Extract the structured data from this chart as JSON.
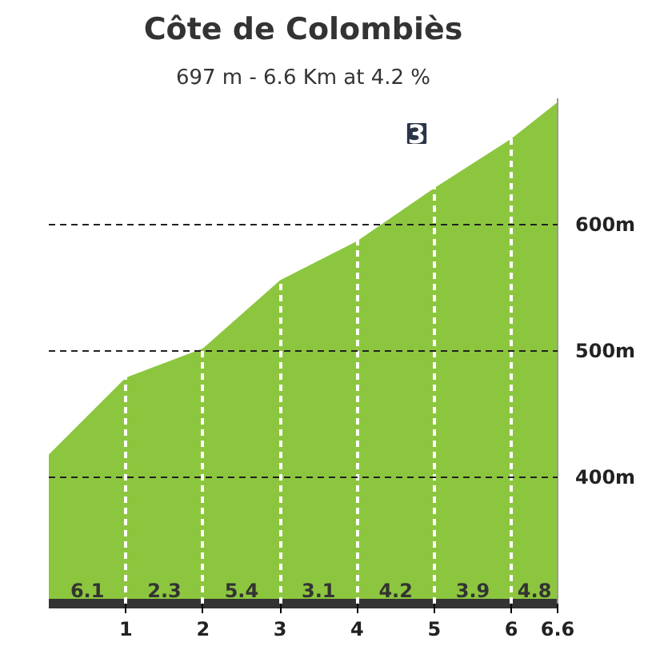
{
  "chart_data": {
    "type": "area",
    "title": "Côte de Colombiès",
    "subtitle": "697 m - 6.6 Km at 4.2 %",
    "x": [
      0,
      1,
      2,
      3,
      4,
      5,
      6,
      6.6
    ],
    "series": [
      {
        "color": "#8cc63f",
        "values": [
          418,
          479,
          502,
          556,
          587,
          629,
          668,
          697
        ]
      }
    ],
    "xlim": [
      0,
      6.6
    ],
    "xticks": [
      1,
      2,
      3,
      4,
      5,
      6,
      6.6
    ],
    "ylim": [
      300,
      700
    ],
    "yticks": [
      {
        "value": 400,
        "label": "400m"
      },
      {
        "value": 500,
        "label": "500m"
      },
      {
        "value": 600,
        "label": "600m"
      }
    ],
    "grid": true,
    "annotations": [
      {
        "text": "6.1",
        "x": 0.5,
        "y": 300
      },
      {
        "text": "2.3",
        "x": 1.5,
        "y": 300
      },
      {
        "text": "5.4",
        "x": 2.5,
        "y": 300
      },
      {
        "text": "3.1",
        "x": 3.5,
        "y": 300
      },
      {
        "text": "4.2",
        "x": 4.5,
        "y": 300
      },
      {
        "text": "3.9",
        "x": 5.5,
        "y": 300
      },
      {
        "text": "4.8",
        "x": 6.3,
        "y": 300
      },
      "3"
    ]
  }
}
